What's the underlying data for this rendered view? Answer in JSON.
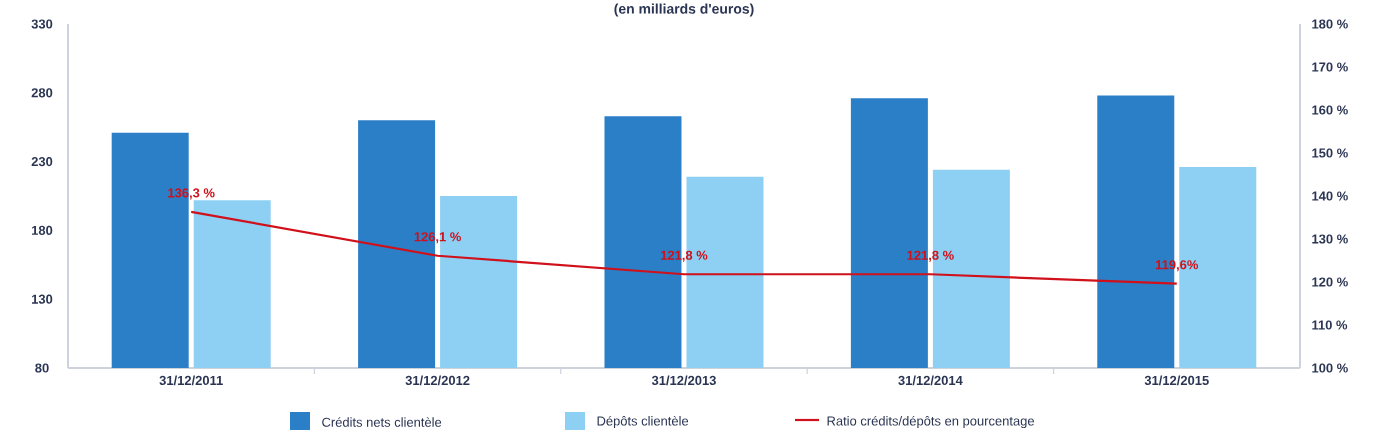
{
  "chart_data": {
    "type": "bar",
    "title": "(en milliards d'euros)",
    "categories": [
      "31/12/2011",
      "31/12/2012",
      "31/12/2013",
      "31/12/2014",
      "31/12/2015"
    ],
    "series": [
      {
        "name": "Crédits nets clientèle",
        "color": "#2a7fc7",
        "values": [
          251,
          260,
          263,
          276,
          278
        ]
      },
      {
        "name": "Dépôts clientèle",
        "color": "#8dd0f3",
        "values": [
          202,
          205,
          219,
          224,
          226
        ]
      },
      {
        "name": "Ratio crédits/dépôts en pourcentage",
        "type": "line",
        "axis": "y2",
        "color": "#d0101a",
        "values": [
          136.3,
          126.1,
          121.8,
          121.8,
          119.6
        ],
        "value_labels": [
          "136,3 %",
          "126,1 %",
          "121,8 %",
          "121,8 %",
          "119,6%"
        ]
      }
    ],
    "ylim": [
      80,
      330
    ],
    "yticks": [
      80,
      130,
      180,
      230,
      280,
      330
    ],
    "y2lim": [
      100,
      180
    ],
    "y2ticks": [
      {
        "value": 100,
        "label": "100 %"
      },
      {
        "value": 110,
        "label": "110 %"
      },
      {
        "value": 120,
        "label": "120 %"
      },
      {
        "value": 130,
        "label": "130 %"
      },
      {
        "value": 140,
        "label": "140 %"
      },
      {
        "value": 150,
        "label": "150 %"
      },
      {
        "value": 160,
        "label": "160 %"
      },
      {
        "value": 170,
        "label": "170 %"
      },
      {
        "value": 180,
        "label": "180 %"
      }
    ],
    "legend": "bottom"
  }
}
